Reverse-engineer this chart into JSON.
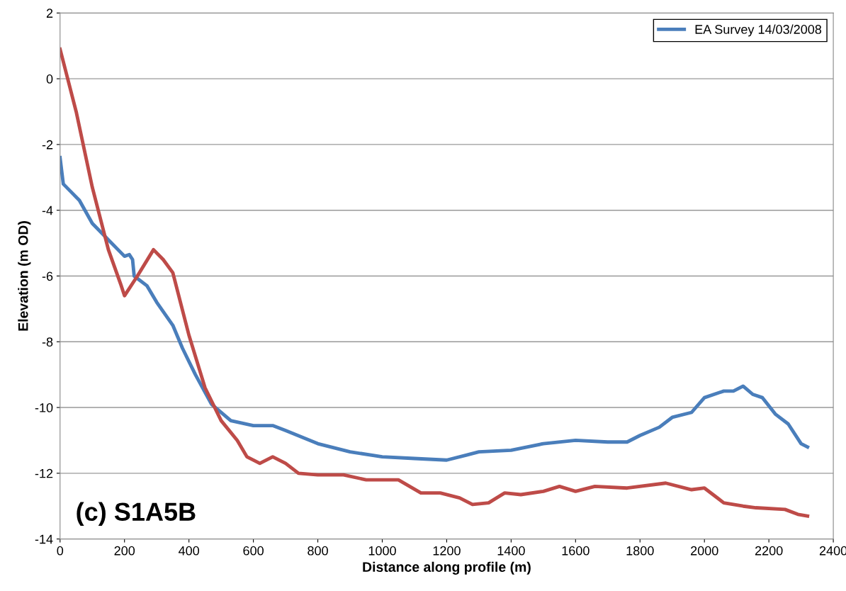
{
  "chart_data": {
    "type": "line",
    "xlabel": "Distance along profile (m)",
    "ylabel": "Elevation (m OD)",
    "xlim": [
      0,
      2400
    ],
    "xticks": [
      0,
      200,
      400,
      600,
      800,
      1000,
      1200,
      1400,
      1600,
      1800,
      2000,
      2200,
      2400
    ],
    "ylim": [
      -14,
      2
    ],
    "yticks": [
      -14,
      -12,
      -10,
      -8,
      -6,
      -4,
      -2,
      0,
      2
    ],
    "grid": "y",
    "legend": "top right",
    "marker": "none",
    "line_style": "solid",
    "annotations": [
      "(c) S1A5B"
    ],
    "series": [
      {
        "name": "EA Survey 14/03/2008",
        "color": "#4a7ebb",
        "x": [
          0,
          10,
          30,
          60,
          100,
          150,
          180,
          200,
          215,
          225,
          230,
          270,
          300,
          350,
          380,
          420,
          470,
          530,
          600,
          660,
          700,
          800,
          900,
          1000,
          1100,
          1200,
          1260,
          1300,
          1400,
          1500,
          1600,
          1700,
          1760,
          1800,
          1860,
          1900,
          1960,
          2000,
          2060,
          2090,
          2120,
          2150,
          2180,
          2220,
          2260,
          2300,
          2320
        ],
        "values": [
          -2.4,
          -3.2,
          -3.4,
          -3.7,
          -4.4,
          -4.9,
          -5.2,
          -5.4,
          -5.35,
          -5.5,
          -6.0,
          -6.3,
          -6.8,
          -7.5,
          -8.2,
          -9.0,
          -9.9,
          -10.4,
          -10.55,
          -10.55,
          -10.7,
          -11.1,
          -11.35,
          -11.5,
          -11.55,
          -11.6,
          -11.45,
          -11.35,
          -11.3,
          -11.1,
          -11.0,
          -11.05,
          -11.05,
          -10.85,
          -10.6,
          -10.3,
          -10.15,
          -9.7,
          -9.5,
          -9.5,
          -9.35,
          -9.6,
          -9.7,
          -10.2,
          -10.5,
          -11.1,
          -11.2
        ]
      },
      {
        "color": "#be4b48",
        "x": [
          0,
          50,
          100,
          150,
          190,
          200,
          240,
          290,
          320,
          350,
          400,
          450,
          500,
          550,
          580,
          620,
          660,
          700,
          740,
          800,
          880,
          950,
          1050,
          1120,
          1180,
          1240,
          1280,
          1330,
          1380,
          1430,
          1500,
          1550,
          1600,
          1660,
          1760,
          1880,
          1960,
          2000,
          2060,
          2120,
          2160,
          2250,
          2290,
          2320
        ],
        "values": [
          0.9,
          -1.0,
          -3.3,
          -5.2,
          -6.3,
          -6.6,
          -6.0,
          -5.2,
          -5.5,
          -5.9,
          -7.8,
          -9.4,
          -10.4,
          -11.0,
          -11.5,
          -11.7,
          -11.5,
          -11.7,
          -12.0,
          -12.05,
          -12.05,
          -12.2,
          -12.2,
          -12.6,
          -12.6,
          -12.75,
          -12.95,
          -12.9,
          -12.6,
          -12.65,
          -12.55,
          -12.4,
          -12.55,
          -12.4,
          -12.45,
          -12.3,
          -12.5,
          -12.45,
          -12.9,
          -13.0,
          -13.05,
          -13.1,
          -13.25,
          -13.3
        ]
      }
    ]
  }
}
